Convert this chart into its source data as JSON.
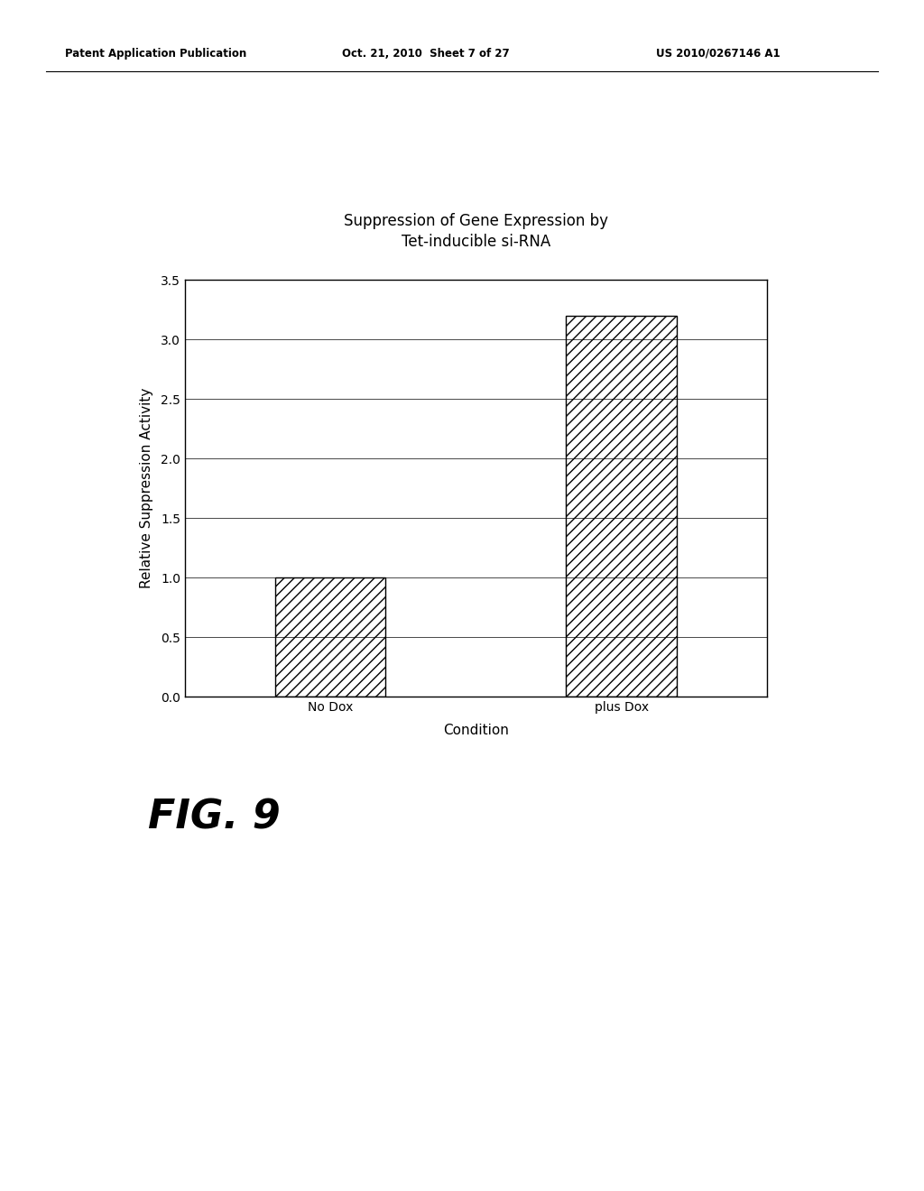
{
  "title_line1": "Suppression of Gene Expression by",
  "title_line2": "Tet-inducible si-RNA",
  "categories": [
    "No Dox",
    "plus Dox"
  ],
  "values": [
    1.0,
    3.2
  ],
  "ylabel": "Relative Suppression Activity",
  "xlabel": "Condition",
  "ylim": [
    0.0,
    3.5
  ],
  "yticks": [
    0.0,
    0.5,
    1.0,
    1.5,
    2.0,
    2.5,
    3.0,
    3.5
  ],
  "bar_color": "#ffffff",
  "bar_edge_color": "#000000",
  "hatch_pattern": "///",
  "background_color": "#ffffff",
  "header_left": "Patent Application Publication",
  "header_mid": "Oct. 21, 2010  Sheet 7 of 27",
  "header_right": "US 2010/0267146 A1",
  "fig_label": "FIG. 9",
  "title_fontsize": 12,
  "axis_label_fontsize": 11,
  "tick_fontsize": 10,
  "header_fontsize": 8.5,
  "fig_label_fontsize": 32,
  "xlabel_fontweight": "normal"
}
